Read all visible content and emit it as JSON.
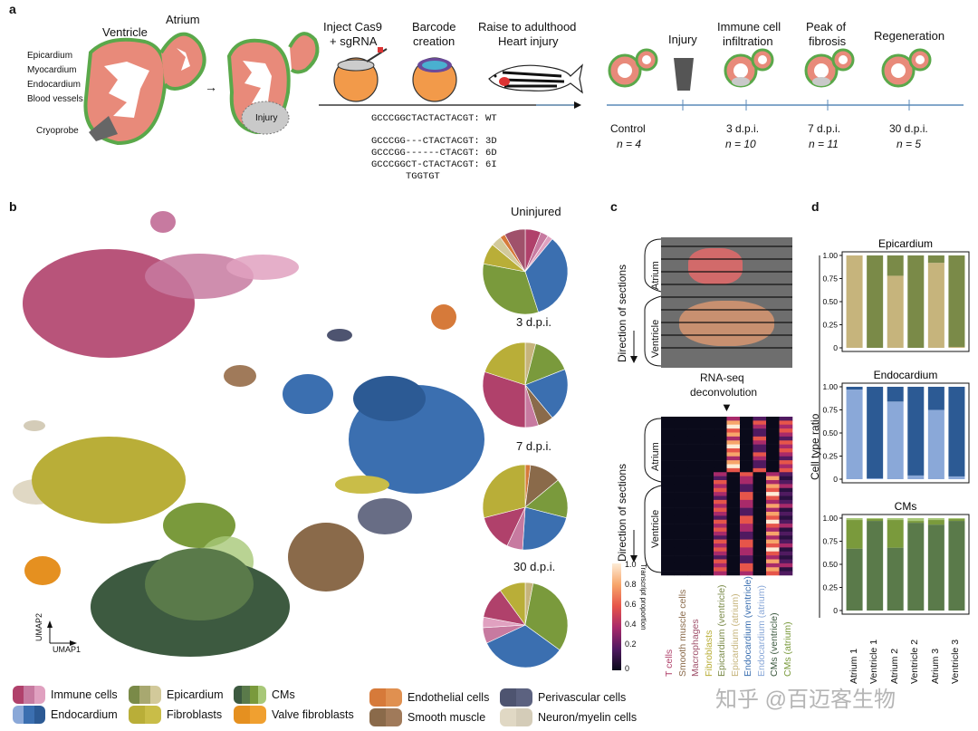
{
  "panels": {
    "a": "a",
    "b": "b",
    "c": "c",
    "d": "d"
  },
  "panel_a": {
    "heart_labels": {
      "ventricle": "Ventricle",
      "atrium": "Atrium",
      "epicardium": "Epicardium",
      "myocardium": "Myocardium",
      "endocardium": "Endocardium",
      "blood_vessels": "Blood vessels",
      "cryoprobe": "Cryoprobe",
      "injury": "Injury"
    },
    "steps": {
      "inject": "Inject Cas9",
      "inject2": "+ sgRNA",
      "barcode": "Barcode",
      "barcode2": "creation",
      "raise": "Raise to adulthood",
      "raise2": "Heart injury"
    },
    "sequences": [
      "GCCCGGCTACTACTACGT: WT",
      "GCCCGG---CTACTACGT: 3D",
      "GCCCGG------CTACGT: 6D",
      "GCCCGGCT-CTACTACGT: 6I",
      "TGGTGT"
    ],
    "timeline": [
      {
        "top": "",
        "mid": "Control",
        "n": "n = 4"
      },
      {
        "top": "Injury",
        "mid": "",
        "n": ""
      },
      {
        "top": "Immune cell",
        "top2": "infiltration",
        "mid": "3 d.p.i.",
        "n": "n = 10"
      },
      {
        "top": "Peak of",
        "top2": "fibrosis",
        "mid": "7 d.p.i.",
        "n": "n = 11"
      },
      {
        "top": "Regeneration",
        "mid": "30 d.p.i.",
        "n": "n = 5"
      }
    ]
  },
  "panel_b": {
    "umap1": "UMAP1",
    "umap2": "UMAP2",
    "pies": [
      {
        "title": "Uninjured",
        "slices": [
          {
            "v": 6,
            "c": "#b0416b"
          },
          {
            "v": 3,
            "c": "#c77aa0"
          },
          {
            "v": 2,
            "c": "#e0a1c0"
          },
          {
            "v": 34,
            "c": "#3b6fb0"
          },
          {
            "v": 33,
            "c": "#7a9a3c"
          },
          {
            "v": 8,
            "c": "#b9ae38"
          },
          {
            "v": 4,
            "c": "#d2c99a"
          },
          {
            "v": 2,
            "c": "#d67a3a"
          },
          {
            "v": 8,
            "c": "#a0516b"
          }
        ]
      },
      {
        "title": "3 d.p.i.",
        "slices": [
          {
            "v": 4,
            "c": "#c6b47c"
          },
          {
            "v": 15,
            "c": "#7a9a3c"
          },
          {
            "v": 20,
            "c": "#3b6fb0"
          },
          {
            "v": 6,
            "c": "#8a6a4a"
          },
          {
            "v": 5,
            "c": "#c77aa0"
          },
          {
            "v": 30,
            "c": "#b0416b"
          },
          {
            "v": 20,
            "c": "#b9ae38"
          }
        ]
      },
      {
        "title": "7 d.p.i.",
        "slices": [
          {
            "v": 2,
            "c": "#d67a3a"
          },
          {
            "v": 12,
            "c": "#8a6a4a"
          },
          {
            "v": 15,
            "c": "#7a9a3c"
          },
          {
            "v": 22,
            "c": "#3b6fb0"
          },
          {
            "v": 6,
            "c": "#c77aa0"
          },
          {
            "v": 14,
            "c": "#b0416b"
          },
          {
            "v": 29,
            "c": "#b9ae38"
          }
        ]
      },
      {
        "title": "30 d.p.i.",
        "slices": [
          {
            "v": 3,
            "c": "#c6b47c"
          },
          {
            "v": 32,
            "c": "#7a9a3c"
          },
          {
            "v": 33,
            "c": "#3b6fb0"
          },
          {
            "v": 6,
            "c": "#c77aa0"
          },
          {
            "v": 4,
            "c": "#e0a1c0"
          },
          {
            "v": 12,
            "c": "#b0416b"
          },
          {
            "v": 10,
            "c": "#b9ae38"
          }
        ]
      }
    ]
  },
  "panel_c": {
    "direction": "Direction of sections",
    "atrium": "Atrium",
    "ventricle": "Ventricle",
    "deconv1": "RNA-seq",
    "deconv2": "deconvolution",
    "colorbar_label": "Transcript proportion",
    "colorbar_ticks": [
      "1.0",
      "0.8",
      "0.6",
      "0.4",
      "0.2",
      "0"
    ],
    "columns": [
      {
        "name": "T cells",
        "c": "#b0416b"
      },
      {
        "name": "Smooth muscle cells",
        "c": "#8a6a4a"
      },
      {
        "name": "Macrophages",
        "c": "#a0516b"
      },
      {
        "name": "Fibroblasts",
        "c": "#b9ae38"
      },
      {
        "name": "Epicardium (ventricle)",
        "c": "#7a8a48"
      },
      {
        "name": "Epicardium (atrium)",
        "c": "#c6b47c"
      },
      {
        "name": "Endocardium (ventricle)",
        "c": "#3b6fb0"
      },
      {
        "name": "Endocardium (atrium)",
        "c": "#8aa8d8"
      },
      {
        "name": "CMs (ventricle)",
        "c": "#3d5a40"
      },
      {
        "name": "CMs (atrium)",
        "c": "#7a9a3c"
      }
    ]
  },
  "panel_d": {
    "ylabel": "Cell type ratio",
    "yticks": [
      "1.00",
      "0.75",
      "0.50",
      "0.25",
      "0"
    ],
    "xlabels": [
      "Atrium 1",
      "Ventricle 1",
      "Atrium 2",
      "Ventricle 2",
      "Atrium 3",
      "Ventricle 3"
    ]
  },
  "legend": [
    {
      "label": "Immune cells",
      "colors": [
        "#b0416b",
        "#c77aa0",
        "#e0a1c0"
      ]
    },
    {
      "label": "Endocardium",
      "colors": [
        "#8aa8d8",
        "#3b6fb0",
        "#2c5a94"
      ]
    },
    {
      "label": "Epicardium",
      "colors": [
        "#7a8a48",
        "#a8a870",
        "#d2c99a"
      ]
    },
    {
      "label": "Fibroblasts",
      "colors": [
        "#b9ae38",
        "#c9bd48"
      ]
    },
    {
      "label": "CMs",
      "colors": [
        "#3d5a40",
        "#5a7a4a",
        "#7a9a3c",
        "#a8c878"
      ]
    },
    {
      "label": "Valve fibroblasts",
      "colors": [
        "#e59020",
        "#f0a030"
      ]
    },
    {
      "label": "Endothelial cells",
      "colors": [
        "#d67a3a",
        "#e09050"
      ]
    },
    {
      "label": "Smooth muscle",
      "colors": [
        "#8a6a4a",
        "#a07a5a"
      ]
    },
    {
      "label": "Perivascular cells",
      "colors": [
        "#4e5470",
        "#5c6280"
      ]
    },
    {
      "label": "Neuron/myelin cells",
      "colors": [
        "#e0d8c4",
        "#d4ccb8"
      ]
    }
  ],
  "chart_data": [
    {
      "type": "bar",
      "title": "Epicardium",
      "categories": [
        "Atrium 1",
        "Ventricle 1",
        "Atrium 2",
        "Ventricle 2",
        "Atrium 3",
        "Ventricle 3"
      ],
      "series": [
        {
          "values": [
            1.0,
            0.0,
            0.78,
            0.0,
            0.92,
            0.01
          ],
          "color": "#c6b47c"
        },
        {
          "values": [
            0.0,
            1.0,
            0.22,
            1.0,
            0.08,
            0.99
          ],
          "color": "#7a8a48"
        }
      ],
      "ylabel": "Cell type ratio",
      "ylim": [
        0,
        1
      ]
    },
    {
      "type": "bar",
      "title": "Endocardium",
      "categories": [
        "Atrium 1",
        "Ventricle 1",
        "Atrium 2",
        "Ventricle 2",
        "Atrium 3",
        "Ventricle 3"
      ],
      "series": [
        {
          "values": [
            0.97,
            0.01,
            0.84,
            0.04,
            0.75,
            0.03
          ],
          "color": "#8aa8d8"
        },
        {
          "values": [
            0.03,
            0.99,
            0.16,
            0.96,
            0.25,
            0.97
          ],
          "color": "#2c5a94"
        }
      ],
      "ylabel": "Cell type ratio",
      "ylim": [
        0,
        1
      ]
    },
    {
      "type": "bar",
      "title": "CMs",
      "categories": [
        "Atrium 1",
        "Ventricle 1",
        "Atrium 2",
        "Ventricle 2",
        "Atrium 3",
        "Ventricle 3"
      ],
      "series": [
        {
          "values": [
            0.67,
            0.97,
            0.68,
            0.95,
            0.93,
            0.97
          ],
          "color": "#5a7a4a"
        },
        {
          "values": [
            0.31,
            0.02,
            0.3,
            0.02,
            0.05,
            0.02
          ],
          "color": "#7a9a3c"
        },
        {
          "values": [
            0.02,
            0.01,
            0.02,
            0.03,
            0.02,
            0.01
          ],
          "color": "#a8c878"
        }
      ],
      "ylabel": "Cell type ratio",
      "ylim": [
        0,
        1
      ]
    }
  ],
  "watermark": "知乎 @百迈客生物"
}
